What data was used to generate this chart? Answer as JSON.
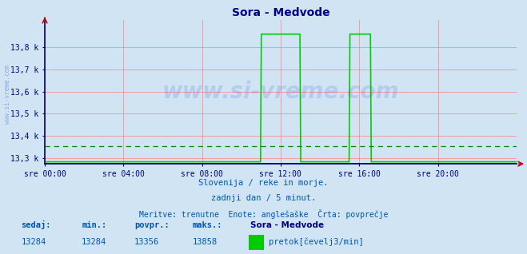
{
  "title": "Sora - Medvode",
  "title_color": "#000080",
  "background_color": "#d0e4f4",
  "plot_bg_color": "#d0e4f4",
  "yticks": [
    13300,
    13400,
    13500,
    13600,
    13700,
    13800
  ],
  "ytick_labels": [
    "13,3 k",
    "13,4 k",
    "13,5 k",
    "13,6 k",
    "13,7 k",
    "13,8 k"
  ],
  "xtick_positions": [
    0,
    4,
    8,
    12,
    16,
    20
  ],
  "xtick_labels": [
    "sre 00:00",
    "sre 04:00",
    "sre 08:00",
    "sre 12:00",
    "sre 16:00",
    "sre 20:00"
  ],
  "line_color": "#00cc00",
  "line_width": 1.2,
  "avg_line_color": "#008800",
  "avg_value": 13356,
  "grid_color": "#ff8888",
  "grid_alpha": 0.8,
  "subtitle1": "Slovenija / reke in morje.",
  "subtitle2": "zadnji dan / 5 minut.",
  "subtitle3": "Meritve: trenutne  Enote: anglešaške  Črta: povprečje",
  "subtitle_color": "#0055aa",
  "legend_title": "Sora - Medvode",
  "legend_label": "pretok[čevelj3/min]",
  "legend_color": "#00cc00",
  "label_sedaj": "sedaj:",
  "label_min": "min.:",
  "label_povpr": "povpr.:",
  "label_maks": "maks.:",
  "val_sedaj": "13284",
  "val_min": "13284",
  "val_povpr": "13356",
  "val_maks": "13858",
  "watermark": "www.si-vreme.com",
  "watermark_color": "#3366cc",
  "watermark_alpha": 0.18,
  "spike1_start": 11.0,
  "spike1_end": 13.0,
  "spike1_val": 13858,
  "spike2_start": 15.5,
  "spike2_end": 16.6,
  "spike2_val": 13858,
  "base_val": 13284,
  "arrow_color": "#cc0000",
  "axis_color": "#000080",
  "ylim_min": 13275,
  "ylim_max": 13920
}
